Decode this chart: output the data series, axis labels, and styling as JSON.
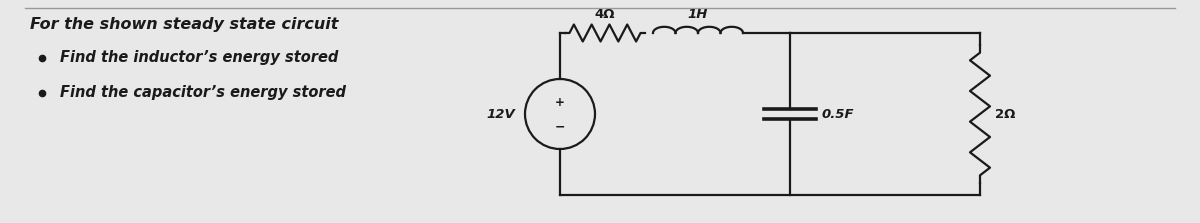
{
  "bg_color": "#e8e8e8",
  "white_panel": "#f5f5f5",
  "text_color": "#1a1a1a",
  "circuit_color": "#1a1a1a",
  "title": "For the shown steady state circuit",
  "bullet1": "Find the inductor’s energy stored",
  "bullet2": "Find the capacitor’s energy stored",
  "label_4ohm": "4Ω",
  "label_1H": "1H",
  "label_12V": "12V",
  "label_05F": "0.5F",
  "label_2ohm": "2Ω",
  "font_size_title": 11.5,
  "font_size_bullet": 10.5,
  "font_size_label": 9.5,
  "divline_color": "#999999",
  "lw": 1.6
}
